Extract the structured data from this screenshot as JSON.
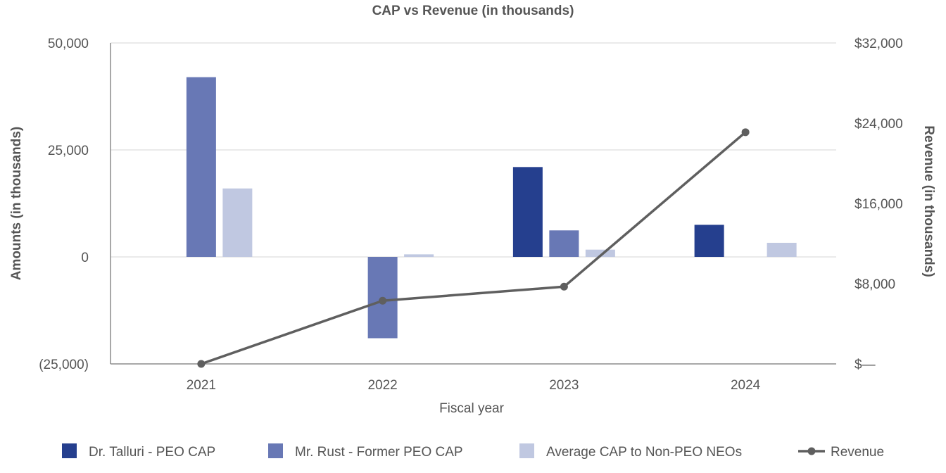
{
  "chart_data": {
    "type": "bar",
    "title": "CAP vs Revenue (in thousands)",
    "xlabel": "Fiscal year",
    "ylabel": "Amounts (in thousands)",
    "y2label": "Revenue (in thousands)",
    "categories": [
      "2021",
      "2022",
      "2023",
      "2024"
    ],
    "ylim": [
      -25000,
      50000
    ],
    "y_ticks": [
      -25000,
      0,
      25000,
      50000
    ],
    "y_tick_labels": [
      "(25,000)",
      "0",
      "25,000",
      "50,000"
    ],
    "y2lim": [
      0,
      32000
    ],
    "y2_ticks": [
      0,
      8000,
      16000,
      24000,
      32000
    ],
    "y2_tick_labels": [
      "$—",
      "$8,000",
      "$16,000",
      "$24,000",
      "$32,000"
    ],
    "grid": true,
    "legend_position": "bottom",
    "series": [
      {
        "name": "Dr. Talluri - PEO CAP",
        "type": "bar",
        "axis": "left",
        "color": "#253f8e",
        "values": [
          null,
          null,
          21000,
          7500
        ]
      },
      {
        "name": "Mr. Rust - Former PEO CAP",
        "type": "bar",
        "axis": "left",
        "color": "#6878b5",
        "values": [
          42000,
          -19000,
          6200,
          null
        ]
      },
      {
        "name": "Average CAP to Non-PEO NEOs",
        "type": "bar",
        "axis": "left",
        "color": "#c0c8e1",
        "values": [
          16000,
          600,
          1700,
          3300
        ]
      },
      {
        "name": "Revenue",
        "type": "line",
        "axis": "right",
        "color": "#5f5f5f",
        "values": [
          0,
          6300,
          7700,
          23100
        ]
      }
    ]
  }
}
